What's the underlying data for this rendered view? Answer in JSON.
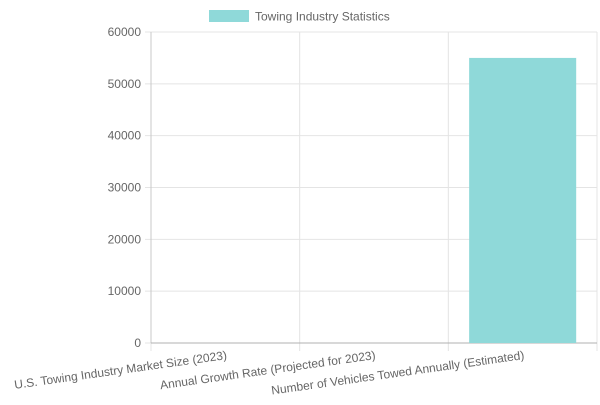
{
  "chart_data": {
    "type": "bar",
    "categories": [
      "U.S. Towing Industry Market Size (2023)",
      "Annual Growth Rate (Projected for 2023)",
      "Number of Vehicles Towed Annually (Estimated)"
    ],
    "series": [
      {
        "name": "Towing Industry Statistics",
        "values": [
          0,
          0,
          55000
        ],
        "color": "#8fd9d9"
      }
    ],
    "y_ticks": [
      "0",
      "10000",
      "20000",
      "30000",
      "40000",
      "50000",
      "60000"
    ],
    "ylim": [
      0,
      60000
    ],
    "grid": true,
    "legend_position": "top-center"
  }
}
